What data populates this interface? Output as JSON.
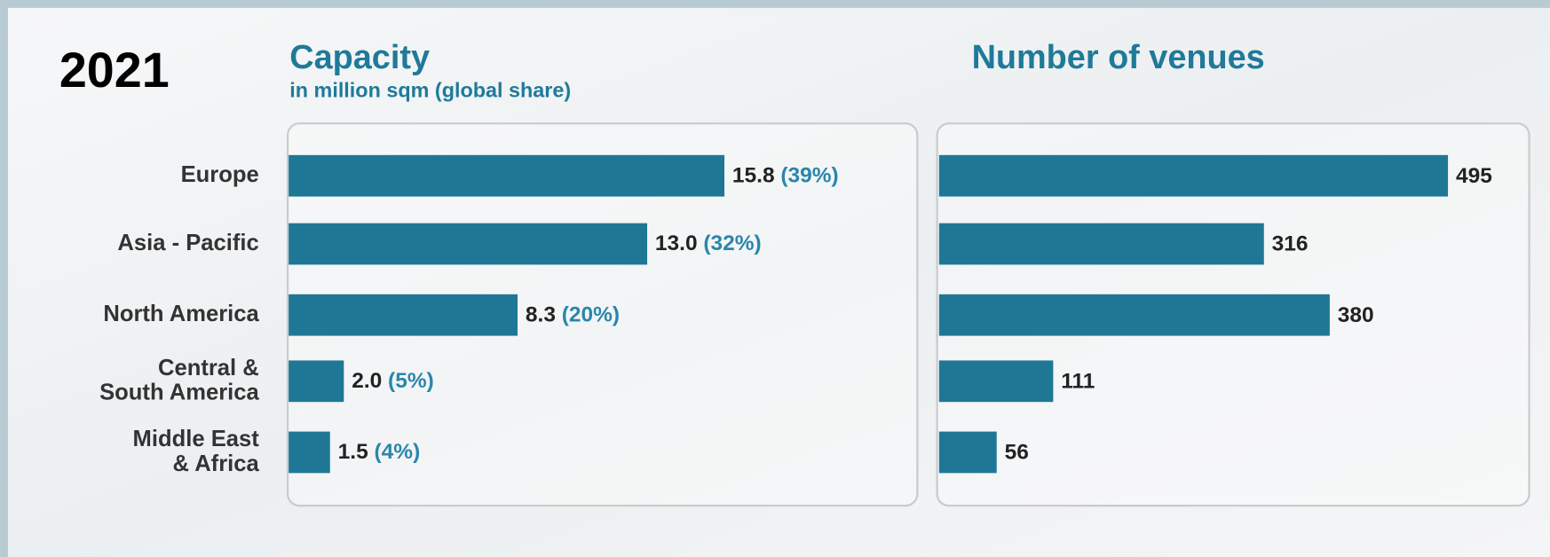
{
  "header": {
    "year": "2021"
  },
  "chart_data": [
    {
      "type": "bar",
      "orientation": "horizontal",
      "title": "Capacity",
      "subtitle": "in million sqm (global share)",
      "categories": [
        "Europe",
        "Asia - Pacific",
        "North America",
        "Central &\nSouth America",
        "Middle East\n& Africa"
      ],
      "values": [
        15.8,
        13.0,
        8.3,
        2.0,
        1.5
      ],
      "value_labels": [
        "15.8",
        "13.0",
        "8.3",
        "2.0",
        "1.5"
      ],
      "share_labels": [
        "(39%)",
        "(32%)",
        "(20%)",
        "(5%)",
        "(4%)"
      ],
      "color": "#1f7796",
      "xlim": [
        0,
        20
      ]
    },
    {
      "type": "bar",
      "orientation": "horizontal",
      "title": "Number of venues",
      "values": [
        495,
        316,
        380,
        111,
        56
      ],
      "color": "#1f7796",
      "xlim": [
        0,
        550
      ]
    }
  ]
}
